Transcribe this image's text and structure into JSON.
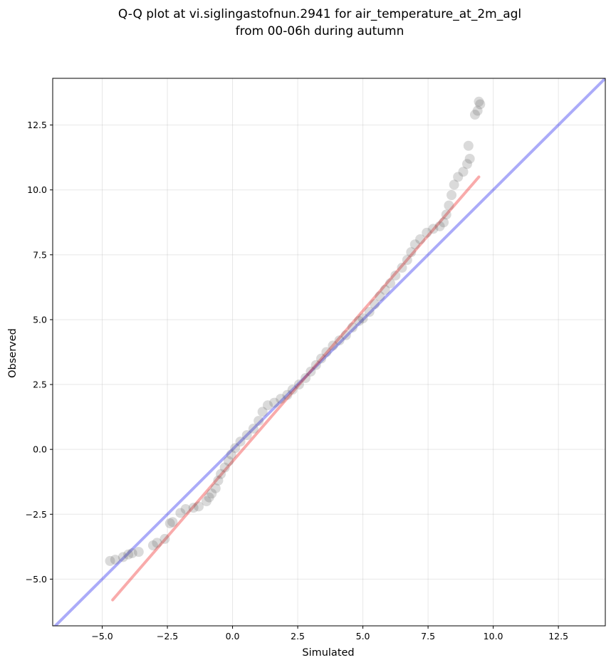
{
  "chart_data": {
    "type": "scatter",
    "title": "Q-Q plot at vi.siglingastofnun.2941 for air_temperature_at_2m_agl",
    "subtitle": "from 00-06h during autumn",
    "xlabel": "Simulated",
    "ylabel": "Observed",
    "xlim": [
      -6.9,
      14.3
    ],
    "ylim": [
      -6.8,
      14.3
    ],
    "xticks": [
      -5.0,
      -2.5,
      0.0,
      2.5,
      5.0,
      7.5,
      10.0,
      12.5
    ],
    "xtick_labels": [
      "−5.0",
      "−2.5",
      "0.0",
      "2.5",
      "5.0",
      "7.5",
      "10.0",
      "12.5"
    ],
    "yticks": [
      -5.0,
      -2.5,
      0.0,
      2.5,
      5.0,
      7.5,
      10.0,
      12.5
    ],
    "ytick_labels": [
      "−5.0",
      "−2.5",
      "0.0",
      "2.5",
      "5.0",
      "7.5",
      "10.0",
      "12.5"
    ],
    "grid": true,
    "reference_lines": [
      {
        "style": "identity",
        "color": "#0000ee",
        "alpha": 0.33,
        "x": [
          -6.9,
          14.3
        ],
        "y": [
          -6.9,
          14.3
        ]
      },
      {
        "style": "fit",
        "color": "#ee0000",
        "alpha": 0.33,
        "x": [
          -4.6,
          9.45
        ],
        "y": [
          -5.8,
          10.5
        ]
      }
    ],
    "marker_color": "#555555",
    "points": [
      [
        -4.7,
        -4.3
      ],
      [
        -4.5,
        -4.25
      ],
      [
        -4.2,
        -4.15
      ],
      [
        -4.0,
        -4.05
      ],
      [
        -3.85,
        -4.0
      ],
      [
        -3.6,
        -3.95
      ],
      [
        -3.05,
        -3.7
      ],
      [
        -2.9,
        -3.6
      ],
      [
        -2.6,
        -3.45
      ],
      [
        -2.4,
        -2.85
      ],
      [
        -2.3,
        -2.8
      ],
      [
        -2.0,
        -2.45
      ],
      [
        -1.8,
        -2.3
      ],
      [
        -1.5,
        -2.25
      ],
      [
        -1.3,
        -2.2
      ],
      [
        -1.0,
        -2.0
      ],
      [
        -0.9,
        -1.85
      ],
      [
        -0.8,
        -1.7
      ],
      [
        -0.65,
        -1.5
      ],
      [
        -0.55,
        -1.2
      ],
      [
        -0.45,
        -0.95
      ],
      [
        -0.3,
        -0.7
      ],
      [
        -0.15,
        -0.45
      ],
      [
        -0.05,
        -0.2
      ],
      [
        0.1,
        0.05
      ],
      [
        0.3,
        0.3
      ],
      [
        0.55,
        0.55
      ],
      [
        0.8,
        0.8
      ],
      [
        1.0,
        1.1
      ],
      [
        1.15,
        1.45
      ],
      [
        1.35,
        1.7
      ],
      [
        1.6,
        1.8
      ],
      [
        1.85,
        1.95
      ],
      [
        2.1,
        2.1
      ],
      [
        2.3,
        2.3
      ],
      [
        2.55,
        2.5
      ],
      [
        2.8,
        2.75
      ],
      [
        3.0,
        3.0
      ],
      [
        3.2,
        3.25
      ],
      [
        3.4,
        3.5
      ],
      [
        3.6,
        3.75
      ],
      [
        3.85,
        4.0
      ],
      [
        4.1,
        4.2
      ],
      [
        4.35,
        4.4
      ],
      [
        4.6,
        4.7
      ],
      [
        4.85,
        4.95
      ],
      [
        5.0,
        5.05
      ],
      [
        5.25,
        5.3
      ],
      [
        5.45,
        5.6
      ],
      [
        5.65,
        5.9
      ],
      [
        5.85,
        6.15
      ],
      [
        6.05,
        6.4
      ],
      [
        6.25,
        6.7
      ],
      [
        6.5,
        7.0
      ],
      [
        6.7,
        7.3
      ],
      [
        6.85,
        7.6
      ],
      [
        7.0,
        7.9
      ],
      [
        7.2,
        8.1
      ],
      [
        7.45,
        8.35
      ],
      [
        7.7,
        8.5
      ],
      [
        7.95,
        8.6
      ],
      [
        8.1,
        8.75
      ],
      [
        8.2,
        9.05
      ],
      [
        8.3,
        9.4
      ],
      [
        8.4,
        9.8
      ],
      [
        8.5,
        10.2
      ],
      [
        8.65,
        10.5
      ],
      [
        8.85,
        10.7
      ],
      [
        9.0,
        11.0
      ],
      [
        9.1,
        11.2
      ],
      [
        9.05,
        11.7
      ],
      [
        9.3,
        12.9
      ],
      [
        9.4,
        13.05
      ],
      [
        9.5,
        13.3
      ],
      [
        9.45,
        13.4
      ]
    ]
  }
}
